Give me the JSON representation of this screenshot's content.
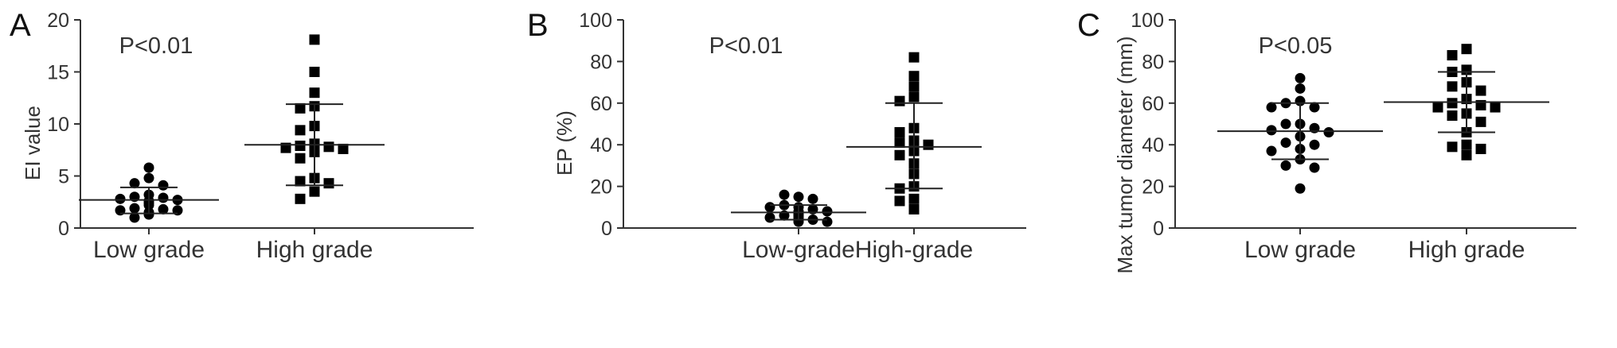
{
  "chart_data": [
    {
      "type": "scatter",
      "panel_label": "A",
      "ylabel": "EI value",
      "ylim": [
        0,
        20
      ],
      "yticks": [
        0,
        5,
        10,
        15,
        20
      ],
      "categories": [
        "Low grade",
        "High grade"
      ],
      "annotation": "P<0.01",
      "groups": [
        {
          "category": "Low grade",
          "marker": "circle",
          "values": [
            5.8,
            4.8,
            4.3,
            4.1,
            3.2,
            3.0,
            2.9,
            2.8,
            2.7,
            2.6,
            2.4,
            2.2,
            1.9,
            1.8,
            1.7,
            1.7,
            1.5,
            1.3,
            1.0
          ],
          "mean": 2.7,
          "sd_upper": 3.9,
          "sd_lower": 1.4
        },
        {
          "category": "High grade",
          "marker": "square",
          "values": [
            18.1,
            15.0,
            13.0,
            11.7,
            11.5,
            9.8,
            9.4,
            8.1,
            7.9,
            7.8,
            7.7,
            7.6,
            7.3,
            6.7,
            4.8,
            4.5,
            4.3,
            3.5,
            2.8
          ],
          "mean": 8.0,
          "sd_upper": 11.9,
          "sd_lower": 4.1
        }
      ]
    },
    {
      "type": "scatter",
      "panel_label": "B",
      "ylabel": "EP (%)",
      "ylim": [
        0,
        100
      ],
      "yticks": [
        0,
        20,
        40,
        60,
        80,
        100
      ],
      "categories": [
        "Low-grade",
        "High-grade"
      ],
      "annotation": "P<0.01",
      "groups": [
        {
          "category": "Low-grade",
          "marker": "circle",
          "values": [
            15,
            16,
            14,
            11,
            10,
            10,
            9,
            8,
            8,
            7,
            7,
            6,
            6,
            5,
            5,
            4,
            4,
            3,
            3
          ],
          "mean": 7.5,
          "sd_upper": 11.0,
          "sd_lower": 4.0
        },
        {
          "category": "High-grade",
          "marker": "square",
          "values": [
            82,
            73,
            68,
            63,
            61,
            48,
            46,
            42,
            41,
            40,
            37,
            35,
            31,
            26,
            20,
            19,
            14,
            13,
            9
          ],
          "mean": 39,
          "sd_upper": 60,
          "sd_lower": 19
        }
      ]
    },
    {
      "type": "scatter",
      "panel_label": "C",
      "ylabel": "Max tumor diameter (mm)",
      "ylim": [
        0,
        100
      ],
      "yticks": [
        0,
        20,
        40,
        60,
        80,
        100
      ],
      "categories": [
        "Low grade",
        "High grade"
      ],
      "annotation": "P<0.05",
      "groups": [
        {
          "category": "Low grade",
          "marker": "circle",
          "values": [
            72,
            67,
            61,
            60,
            58,
            58,
            50,
            50,
            48,
            47,
            46,
            44,
            41,
            40,
            38,
            37,
            33,
            30,
            29,
            19
          ],
          "mean": 46.5,
          "sd_upper": 60,
          "sd_lower": 33
        },
        {
          "category": "High grade",
          "marker": "square",
          "values": [
            86,
            83,
            76,
            75,
            70,
            68,
            66,
            62,
            60,
            59,
            58,
            58,
            55,
            54,
            51,
            46,
            40,
            39,
            38,
            35
          ],
          "mean": 60.5,
          "sd_upper": 75,
          "sd_lower": 46
        }
      ]
    }
  ]
}
